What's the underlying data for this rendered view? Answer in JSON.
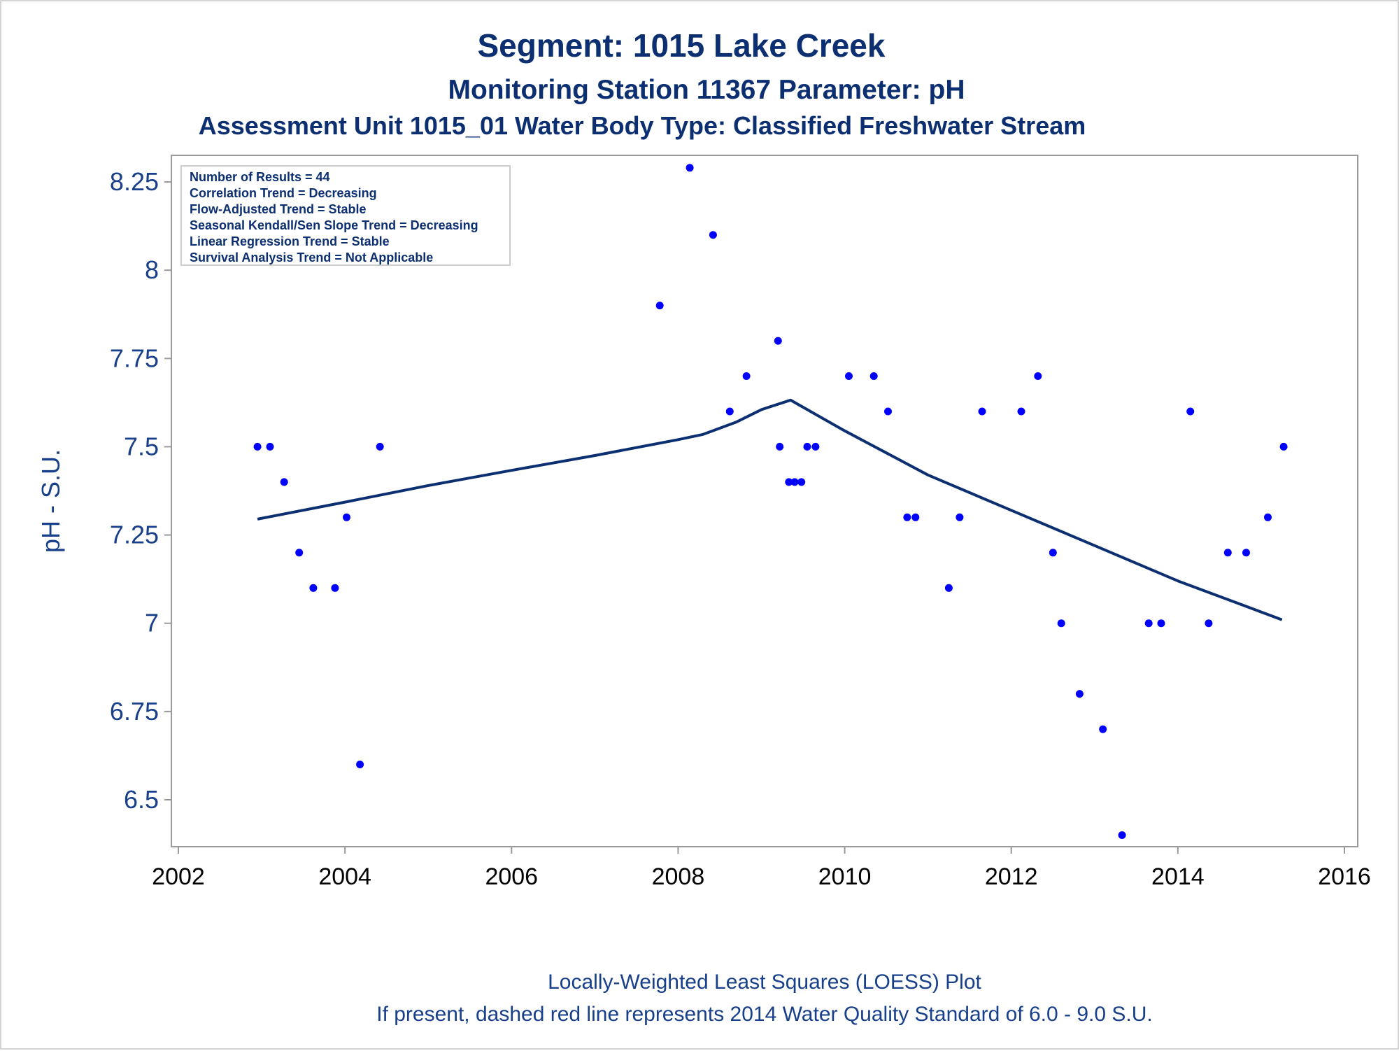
{
  "chart_data": {
    "type": "scatter",
    "title": "Segment: 1015  Lake Creek",
    "subtitle": "Monitoring Station 11367 Parameter: pH",
    "subtitle2": "Assessment Unit 1015_01   Water Body Type: Classified Freshwater Stream",
    "xlabel": "",
    "ylabel": "pH - S.U.",
    "xlim": [
      2002,
      2016
    ],
    "ylim": [
      6.39,
      8.33
    ],
    "xticks": [
      "2002",
      "2004",
      "2006",
      "2008",
      "2010",
      "2012",
      "2014",
      "2016"
    ],
    "yticks": [
      "6.5",
      "6.75",
      "7",
      "7.25",
      "7.5",
      "7.75",
      "8",
      "8.25"
    ],
    "grid": false,
    "stats_box": [
      "Number of Results = 44",
      "Correlation Trend = Decreasing",
      "Flow-Adjusted Trend = Stable",
      "Seasonal Kendall/Sen Slope Trend = Decreasing",
      "Linear Regression Trend = Stable",
      "Survival Analysis Trend = Not Applicable"
    ],
    "footer": [
      "Locally-Weighted Least Squares (LOESS) Plot",
      "If present, dashed red line represents 2014 Water Quality Standard of 6.0 - 9.0 S.U."
    ],
    "series": [
      {
        "kind": "scatter",
        "color": "#0000ff",
        "points": [
          [
            2002.95,
            7.5
          ],
          [
            2003.1,
            7.5
          ],
          [
            2003.27,
            7.4
          ],
          [
            2003.45,
            7.2
          ],
          [
            2003.62,
            7.1
          ],
          [
            2003.88,
            7.1
          ],
          [
            2004.02,
            7.3
          ],
          [
            2004.18,
            6.6
          ],
          [
            2004.42,
            7.5
          ],
          [
            2007.78,
            7.9
          ],
          [
            2008.14,
            8.29
          ],
          [
            2008.42,
            8.1
          ],
          [
            2008.62,
            7.6
          ],
          [
            2008.82,
            7.7
          ],
          [
            2009.2,
            7.8
          ],
          [
            2009.22,
            7.5
          ],
          [
            2009.33,
            7.4
          ],
          [
            2009.4,
            7.4
          ],
          [
            2009.48,
            7.4
          ],
          [
            2009.55,
            7.5
          ],
          [
            2009.65,
            7.5
          ],
          [
            2010.05,
            7.7
          ],
          [
            2010.35,
            7.7
          ],
          [
            2010.52,
            7.6
          ],
          [
            2010.75,
            7.3
          ],
          [
            2010.85,
            7.3
          ],
          [
            2011.25,
            7.1
          ],
          [
            2011.38,
            7.3
          ],
          [
            2011.65,
            7.6
          ],
          [
            2012.12,
            7.6
          ],
          [
            2012.32,
            7.7
          ],
          [
            2012.5,
            7.2
          ],
          [
            2012.6,
            7.0
          ],
          [
            2012.82,
            6.8
          ],
          [
            2013.1,
            6.7
          ],
          [
            2013.33,
            6.4
          ],
          [
            2013.65,
            7.0
          ],
          [
            2013.8,
            7.0
          ],
          [
            2014.15,
            7.6
          ],
          [
            2014.37,
            7.0
          ],
          [
            2014.6,
            7.2
          ],
          [
            2014.82,
            7.2
          ],
          [
            2015.08,
            7.3
          ],
          [
            2015.27,
            7.5
          ]
        ]
      },
      {
        "kind": "line",
        "color": "#0c2f72",
        "points": [
          [
            2002.95,
            7.295
          ],
          [
            2004.0,
            7.343
          ],
          [
            2005.0,
            7.39
          ],
          [
            2006.0,
            7.433
          ],
          [
            2007.0,
            7.475
          ],
          [
            2008.0,
            7.52
          ],
          [
            2008.3,
            7.535
          ],
          [
            2008.7,
            7.57
          ],
          [
            2009.0,
            7.605
          ],
          [
            2009.35,
            7.632
          ],
          [
            2009.7,
            7.585
          ],
          [
            2010.0,
            7.545
          ],
          [
            2011.0,
            7.42
          ],
          [
            2012.0,
            7.32
          ],
          [
            2013.0,
            7.22
          ],
          [
            2014.0,
            7.12
          ],
          [
            2015.25,
            7.01
          ]
        ]
      }
    ]
  }
}
